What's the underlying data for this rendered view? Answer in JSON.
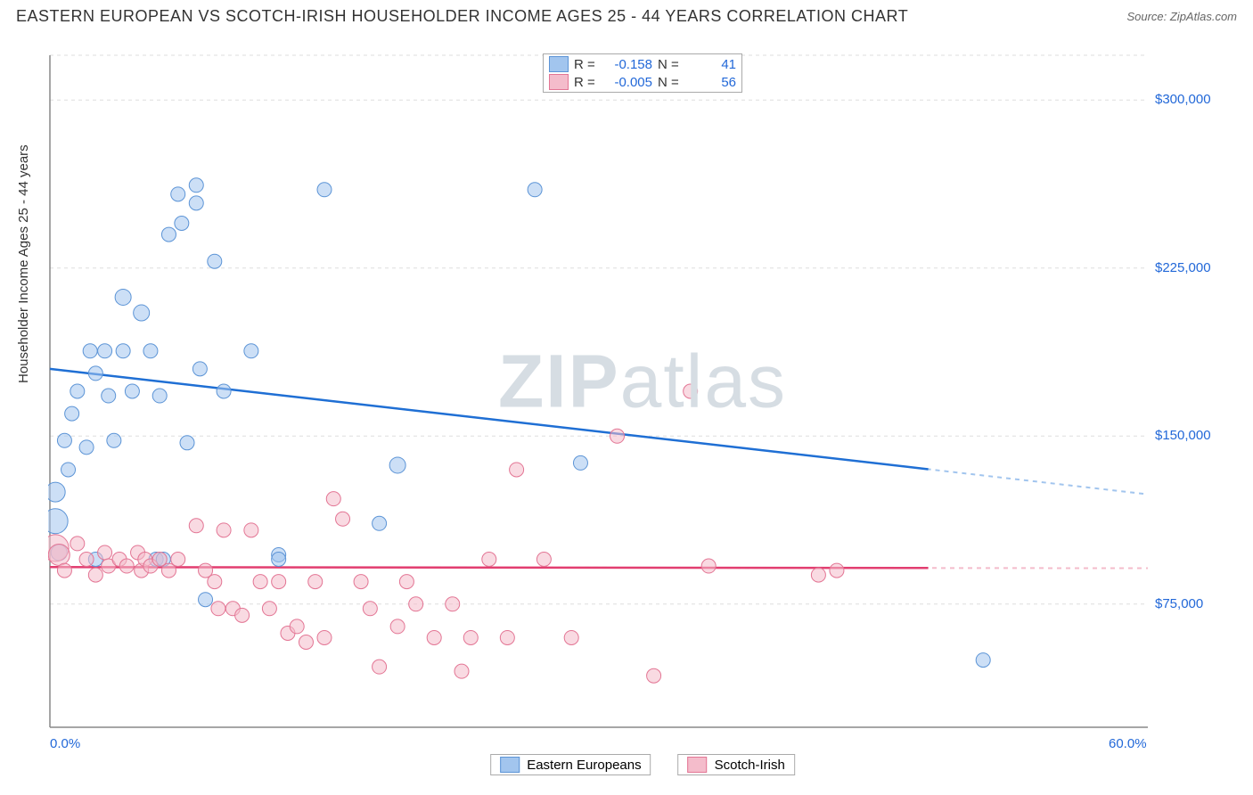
{
  "header": {
    "title": "EASTERN EUROPEAN VS SCOTCH-IRISH HOUSEHOLDER INCOME AGES 25 - 44 YEARS CORRELATION CHART",
    "source": "Source: ZipAtlas.com"
  },
  "chart": {
    "type": "scatter",
    "watermark_bold": "ZIP",
    "watermark_light": "atlas",
    "y_axis_label": "Householder Income Ages 25 - 44 years",
    "xlim": [
      0,
      60
    ],
    "ylim": [
      20000,
      320000
    ],
    "x_ticks": [
      {
        "v": 0,
        "label": "0.0%"
      },
      {
        "v": 60,
        "label": "60.0%"
      }
    ],
    "y_ticks": [
      {
        "v": 75000,
        "label": "$75,000"
      },
      {
        "v": 150000,
        "label": "$150,000"
      },
      {
        "v": 225000,
        "label": "$225,000"
      },
      {
        "v": 300000,
        "label": "$300,000"
      }
    ],
    "grid_color": "#dddddd",
    "axis_color": "#888888",
    "background_color": "#ffffff",
    "series": [
      {
        "name": "Eastern Europeans",
        "fill": "#a2c5ee",
        "stroke": "#5c94d6",
        "fill_opacity": 0.55,
        "line_color": "#1f6fd4",
        "line_dash_color": "#a2c5ee",
        "r_label": "R =",
        "r_value": "-0.158",
        "n_label": "N =",
        "n_value": "41",
        "trend": {
          "x1": 0,
          "y1": 180000,
          "x2": 60,
          "y2": 124000
        },
        "points": [
          {
            "x": 0.3,
            "y": 125000,
            "r": 11
          },
          {
            "x": 0.3,
            "y": 112000,
            "r": 14
          },
          {
            "x": 0.5,
            "y": 98000,
            "r": 9
          },
          {
            "x": 0.8,
            "y": 148000,
            "r": 8
          },
          {
            "x": 1.0,
            "y": 135000,
            "r": 8
          },
          {
            "x": 1.2,
            "y": 160000,
            "r": 8
          },
          {
            "x": 1.5,
            "y": 170000,
            "r": 8
          },
          {
            "x": 2.0,
            "y": 145000,
            "r": 8
          },
          {
            "x": 2.2,
            "y": 188000,
            "r": 8
          },
          {
            "x": 2.5,
            "y": 178000,
            "r": 8
          },
          {
            "x": 2.5,
            "y": 95000,
            "r": 8
          },
          {
            "x": 3.0,
            "y": 188000,
            "r": 8
          },
          {
            "x": 3.2,
            "y": 168000,
            "r": 8
          },
          {
            "x": 3.5,
            "y": 148000,
            "r": 8
          },
          {
            "x": 4.0,
            "y": 212000,
            "r": 9
          },
          {
            "x": 4.0,
            "y": 188000,
            "r": 8
          },
          {
            "x": 4.5,
            "y": 170000,
            "r": 8
          },
          {
            "x": 5.0,
            "y": 205000,
            "r": 9
          },
          {
            "x": 5.5,
            "y": 188000,
            "r": 8
          },
          {
            "x": 5.8,
            "y": 95000,
            "r": 8
          },
          {
            "x": 6.0,
            "y": 168000,
            "r": 8
          },
          {
            "x": 6.2,
            "y": 95000,
            "r": 8
          },
          {
            "x": 6.5,
            "y": 240000,
            "r": 8
          },
          {
            "x": 7.0,
            "y": 258000,
            "r": 8
          },
          {
            "x": 7.2,
            "y": 245000,
            "r": 8
          },
          {
            "x": 7.5,
            "y": 147000,
            "r": 8
          },
          {
            "x": 8.0,
            "y": 262000,
            "r": 8
          },
          {
            "x": 8.0,
            "y": 254000,
            "r": 8
          },
          {
            "x": 8.2,
            "y": 180000,
            "r": 8
          },
          {
            "x": 8.5,
            "y": 77000,
            "r": 8
          },
          {
            "x": 9.0,
            "y": 228000,
            "r": 8
          },
          {
            "x": 9.5,
            "y": 170000,
            "r": 8
          },
          {
            "x": 11.0,
            "y": 188000,
            "r": 8
          },
          {
            "x": 12.5,
            "y": 97000,
            "r": 8
          },
          {
            "x": 12.5,
            "y": 95000,
            "r": 8
          },
          {
            "x": 15.0,
            "y": 260000,
            "r": 8
          },
          {
            "x": 18.0,
            "y": 111000,
            "r": 8
          },
          {
            "x": 19.0,
            "y": 137000,
            "r": 9
          },
          {
            "x": 26.5,
            "y": 260000,
            "r": 8
          },
          {
            "x": 29.0,
            "y": 138000,
            "r": 8
          },
          {
            "x": 51.0,
            "y": 50000,
            "r": 8
          }
        ]
      },
      {
        "name": "Scotch-Irish",
        "fill": "#f4bccb",
        "stroke": "#e37594",
        "fill_opacity": 0.55,
        "line_color": "#e23e70",
        "line_dash_color": "#f4bccb",
        "r_label": "R =",
        "r_value": "-0.005",
        "n_label": "N =",
        "n_value": "56",
        "trend": {
          "x1": 0,
          "y1": 91500,
          "x2": 60,
          "y2": 91000
        },
        "points": [
          {
            "x": 0.3,
            "y": 100000,
            "r": 15
          },
          {
            "x": 0.5,
            "y": 97000,
            "r": 12
          },
          {
            "x": 0.8,
            "y": 90000,
            "r": 8
          },
          {
            "x": 1.5,
            "y": 102000,
            "r": 8
          },
          {
            "x": 2.0,
            "y": 95000,
            "r": 8
          },
          {
            "x": 2.5,
            "y": 88000,
            "r": 8
          },
          {
            "x": 3.0,
            "y": 98000,
            "r": 8
          },
          {
            "x": 3.2,
            "y": 92000,
            "r": 8
          },
          {
            "x": 3.8,
            "y": 95000,
            "r": 8
          },
          {
            "x": 4.2,
            "y": 92000,
            "r": 8
          },
          {
            "x": 4.8,
            "y": 98000,
            "r": 8
          },
          {
            "x": 5.0,
            "y": 90000,
            "r": 8
          },
          {
            "x": 5.2,
            "y": 95000,
            "r": 8
          },
          {
            "x": 5.5,
            "y": 92000,
            "r": 8
          },
          {
            "x": 6.0,
            "y": 95000,
            "r": 8
          },
          {
            "x": 6.5,
            "y": 90000,
            "r": 8
          },
          {
            "x": 7.0,
            "y": 95000,
            "r": 8
          },
          {
            "x": 8.0,
            "y": 110000,
            "r": 8
          },
          {
            "x": 8.5,
            "y": 90000,
            "r": 8
          },
          {
            "x": 9.0,
            "y": 85000,
            "r": 8
          },
          {
            "x": 9.2,
            "y": 73000,
            "r": 8
          },
          {
            "x": 9.5,
            "y": 108000,
            "r": 8
          },
          {
            "x": 10.0,
            "y": 73000,
            "r": 8
          },
          {
            "x": 10.5,
            "y": 70000,
            "r": 8
          },
          {
            "x": 11.0,
            "y": 108000,
            "r": 8
          },
          {
            "x": 11.5,
            "y": 85000,
            "r": 8
          },
          {
            "x": 12.0,
            "y": 73000,
            "r": 8
          },
          {
            "x": 12.5,
            "y": 85000,
            "r": 8
          },
          {
            "x": 13.0,
            "y": 62000,
            "r": 8
          },
          {
            "x": 13.5,
            "y": 65000,
            "r": 8
          },
          {
            "x": 14.0,
            "y": 58000,
            "r": 8
          },
          {
            "x": 14.5,
            "y": 85000,
            "r": 8
          },
          {
            "x": 15.0,
            "y": 60000,
            "r": 8
          },
          {
            "x": 15.5,
            "y": 122000,
            "r": 8
          },
          {
            "x": 16.0,
            "y": 113000,
            "r": 8
          },
          {
            "x": 17.0,
            "y": 85000,
            "r": 8
          },
          {
            "x": 17.5,
            "y": 73000,
            "r": 8
          },
          {
            "x": 18.0,
            "y": 47000,
            "r": 8
          },
          {
            "x": 19.0,
            "y": 65000,
            "r": 8
          },
          {
            "x": 19.5,
            "y": 85000,
            "r": 8
          },
          {
            "x": 20.0,
            "y": 75000,
            "r": 8
          },
          {
            "x": 21.0,
            "y": 60000,
            "r": 8
          },
          {
            "x": 22.0,
            "y": 75000,
            "r": 8
          },
          {
            "x": 22.5,
            "y": 45000,
            "r": 8
          },
          {
            "x": 23.0,
            "y": 60000,
            "r": 8
          },
          {
            "x": 24.0,
            "y": 95000,
            "r": 8
          },
          {
            "x": 25.0,
            "y": 60000,
            "r": 8
          },
          {
            "x": 25.5,
            "y": 135000,
            "r": 8
          },
          {
            "x": 27.0,
            "y": 95000,
            "r": 8
          },
          {
            "x": 28.5,
            "y": 60000,
            "r": 8
          },
          {
            "x": 31.0,
            "y": 150000,
            "r": 8
          },
          {
            "x": 33.0,
            "y": 43000,
            "r": 8
          },
          {
            "x": 35.0,
            "y": 170000,
            "r": 8
          },
          {
            "x": 36.0,
            "y": 92000,
            "r": 8
          },
          {
            "x": 42.0,
            "y": 88000,
            "r": 8
          },
          {
            "x": 43.0,
            "y": 90000,
            "r": 8
          }
        ]
      }
    ]
  }
}
